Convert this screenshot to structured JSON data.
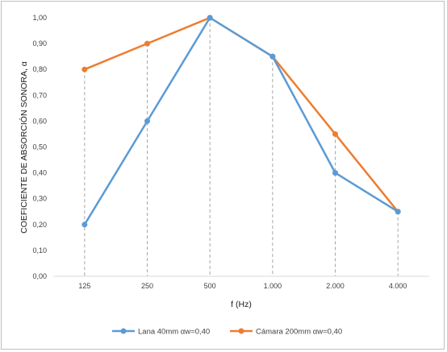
{
  "chart_data": {
    "type": "line",
    "title": "",
    "xlabel": "f (Hz)",
    "ylabel": "COEFICIENTE DE ABSORCIÓN SONORA, α",
    "categories": [
      "125",
      "250",
      "500",
      "1.000",
      "2.000",
      "4.000"
    ],
    "ylim": [
      0,
      1
    ],
    "yticks": [
      "0,00",
      "0,10",
      "0,20",
      "0,30",
      "0,40",
      "0,50",
      "0,60",
      "0,70",
      "0,80",
      "0,90",
      "1,00"
    ],
    "grid": "vertical dashed drop lines",
    "legend_position": "bottom",
    "series": [
      {
        "name": "Lana 40mm αw=0,40",
        "color": "#5b9bd5",
        "values": [
          0.2,
          0.6,
          1.0,
          0.85,
          0.4,
          0.25
        ]
      },
      {
        "name": "Cámara 200mm αw=0,40",
        "color": "#ed7d31",
        "values": [
          0.8,
          0.9,
          1.0,
          0.85,
          0.55,
          0.25
        ]
      }
    ]
  }
}
